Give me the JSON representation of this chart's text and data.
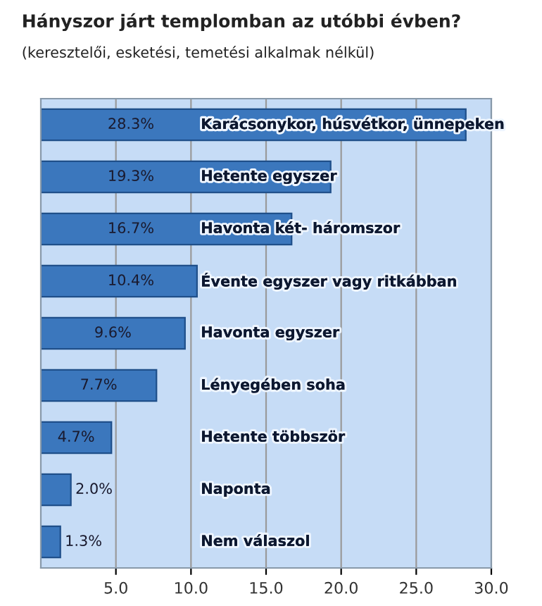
{
  "chart_data": {
    "type": "bar",
    "orientation": "horizontal",
    "title": "Hányszor járt templomban az utóbbi évben?",
    "subtitle": "(keresztelői, esketési, temetési alkalmak nélkül)",
    "categories": [
      "Karácsonykor, húsvétkor, ünnepeken",
      "Hetente egyszer",
      "Havonta két- háromszor",
      "Évente egyszer vagy ritkábban",
      "Havonta egyszer",
      "Lényegében soha",
      "Hetente többször",
      "Naponta",
      "Nem válaszol"
    ],
    "values": [
      28.3,
      19.3,
      16.7,
      10.4,
      9.6,
      7.7,
      4.7,
      2.0,
      1.3
    ],
    "value_labels": [
      "28.3%",
      "19.3%",
      "16.7%",
      "10.4%",
      "9.6%",
      "7.7%",
      "4.7%",
      "2.0%",
      "1.3%"
    ],
    "color": "#3b77bd",
    "xlim": [
      0,
      30
    ],
    "xticks": [
      {
        "value": 5,
        "label": "5.0"
      },
      {
        "value": 10,
        "label": "10.0"
      },
      {
        "value": 15,
        "label": "15.0"
      },
      {
        "value": 20,
        "label": "20.0"
      },
      {
        "value": 25,
        "label": "25.0"
      },
      {
        "value": 30,
        "label": "30.0"
      }
    ],
    "grid": "x"
  }
}
